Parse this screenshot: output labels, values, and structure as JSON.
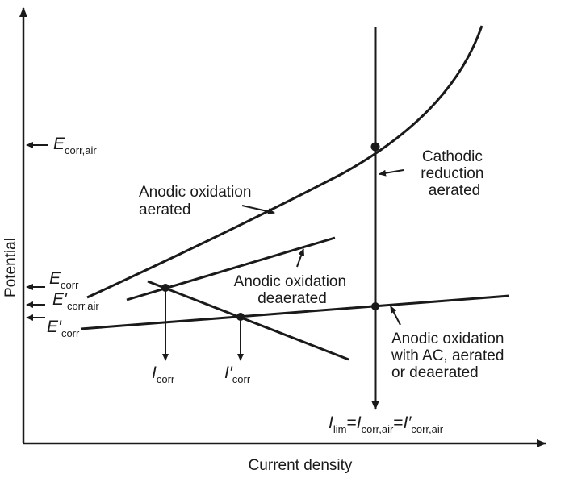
{
  "axes": {
    "x_label": "Current density",
    "y_label": "Potential"
  },
  "curves": {
    "anodic_aerated": [
      "Anodic oxidation",
      "aerated"
    ],
    "anodic_deaerated": [
      "Anodic oxidation",
      "deaerated"
    ],
    "cathodic": [
      "Cathodic",
      "reduction",
      "aerated"
    ],
    "anodic_ac": [
      "Anodic oxidation",
      "with AC, aerated",
      "or deaerated"
    ]
  },
  "potentials": {
    "e_corr_air": {
      "main": "E",
      "sub": "corr,air"
    },
    "e_corr": {
      "main": "E",
      "sub": "corr"
    },
    "e_prime_corr_air": {
      "main": "E′",
      "sub": "corr,air"
    },
    "e_prime_corr": {
      "main": "E′",
      "sub": "corr"
    }
  },
  "currents": {
    "i_corr": {
      "main": "I",
      "sub": "corr"
    },
    "i_prime_corr": {
      "main": "I′",
      "sub": "corr"
    },
    "i_lim": {
      "p1": "I",
      "s1": "lim",
      "eq1": "=",
      "p2": "I",
      "s2": "corr,air",
      "eq2": "=",
      "p3": "I′",
      "s3": "corr,air"
    }
  },
  "colors": {
    "ink": "#1a1a1a",
    "background": "#ffffff"
  }
}
